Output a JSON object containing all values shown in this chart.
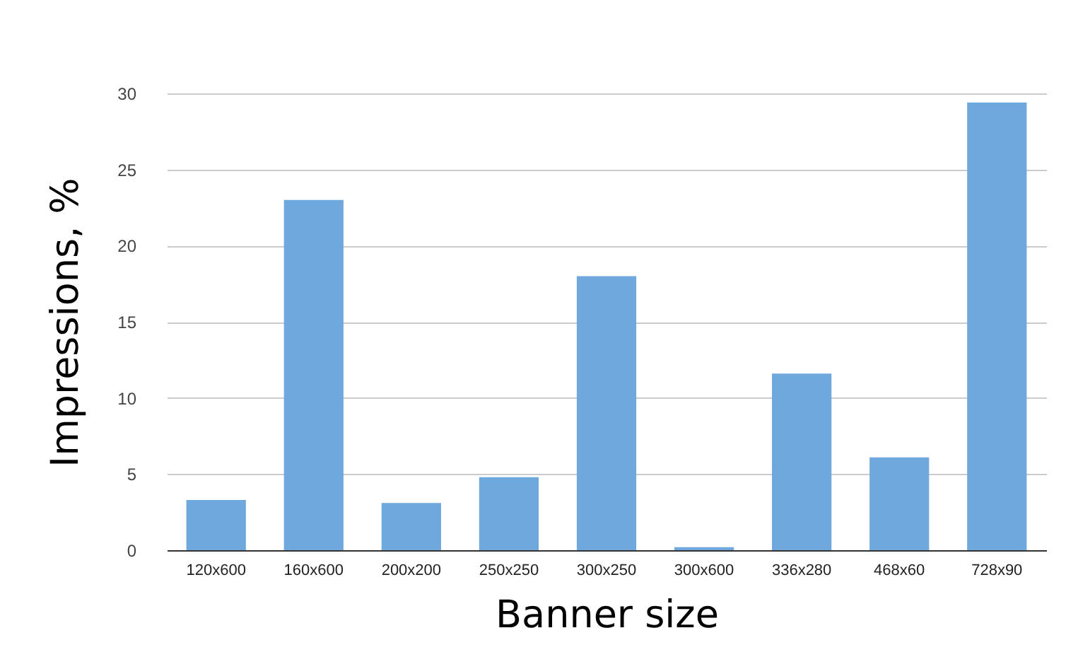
{
  "chart_data": {
    "type": "bar",
    "xlabel": "Banner size",
    "ylabel": "Impressions, %",
    "categories": [
      "120x600",
      "160x600",
      "200x200",
      "250x250",
      "300x250",
      "300x600",
      "336x280",
      "468x60",
      "728x90"
    ],
    "values": [
      3.3,
      23,
      3.1,
      4.8,
      18,
      0.2,
      11.6,
      6.1,
      29.4
    ],
    "color": "#6fa8dc",
    "ylim": [
      0,
      30
    ],
    "yticks": [
      0,
      5,
      10,
      15,
      20,
      25,
      30
    ],
    "grid": "y"
  }
}
